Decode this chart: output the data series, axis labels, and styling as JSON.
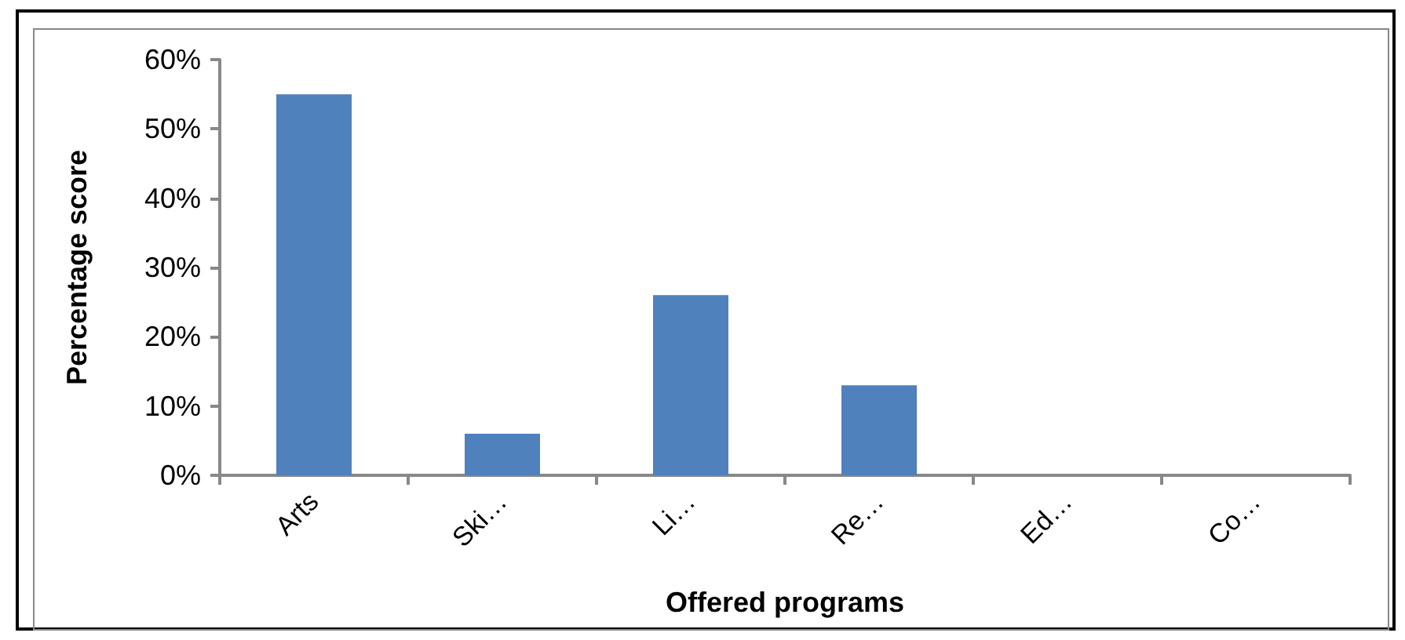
{
  "chart_data": {
    "type": "bar",
    "xlabel": "Offered programs",
    "ylabel": "Percentage score",
    "categories": [
      "Arts",
      "Ski…",
      "Li…",
      "Re…",
      "Ed…",
      "Co…"
    ],
    "values": [
      55,
      6,
      26,
      13,
      0,
      0
    ],
    "color": "#4f81bd",
    "ylim": [
      0,
      60
    ],
    "yticks": [
      {
        "value": 0,
        "label": "0%"
      },
      {
        "value": 10,
        "label": "10%"
      },
      {
        "value": 20,
        "label": "20%"
      },
      {
        "value": 30,
        "label": "30%"
      },
      {
        "value": 40,
        "label": "40%"
      },
      {
        "value": 50,
        "label": "50%"
      },
      {
        "value": 60,
        "label": "60%"
      }
    ],
    "grid": false
  }
}
